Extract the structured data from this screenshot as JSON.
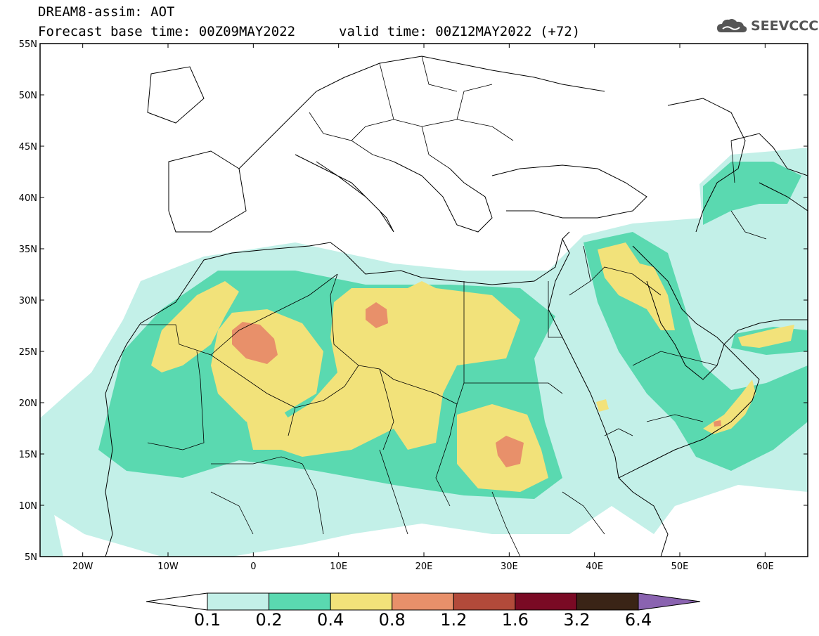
{
  "header": {
    "line1": "DREAM8-assim: AOT",
    "line2": "Forecast base time: 00Z09MAY2022",
    "valid": "valid time: 00Z12MAY2022 (+72)"
  },
  "logo": {
    "text": "SEEVCCC",
    "icon": "cloud-icon"
  },
  "map": {
    "lon_range": [
      -25,
      65
    ],
    "lat_range": [
      5,
      55
    ],
    "lat_ticks": [
      "55N",
      "50N",
      "45N",
      "40N",
      "35N",
      "30N",
      "25N",
      "20N",
      "15N",
      "10N",
      "5N"
    ],
    "lon_ticks": [
      "20W",
      "10W",
      "0",
      "10E",
      "20E",
      "30E",
      "40E",
      "50E",
      "60E"
    ]
  },
  "colorbar": {
    "levels": [
      "0.1",
      "0.2",
      "0.4",
      "0.8",
      "1.2",
      "1.6",
      "3.2",
      "6.4"
    ],
    "colors": [
      "#c3f0e8",
      "#5ad9b0",
      "#f2e27a",
      "#e8906a",
      "#b24a3a",
      "#7a0a24",
      "#3a2416"
    ],
    "under_color": "#ffffff",
    "over_color": "#8a63b0"
  }
}
